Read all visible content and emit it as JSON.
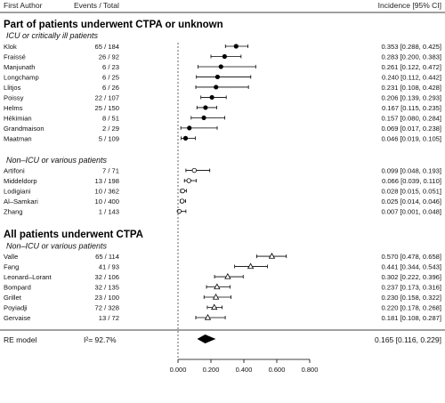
{
  "header": {
    "author": "First Author",
    "events": "Events / Total",
    "incidence": "Incidence [95% CI]"
  },
  "sections": [
    {
      "title": "Part of patients underwent CTPA or unknown",
      "groups": [
        {
          "title": "ICU or critically ill patients",
          "marker": "circle",
          "rows": [
            {
              "author": "Klok",
              "events": "65 / 184",
              "est": 0.353,
              "lo": 0.288,
              "hi": 0.425,
              "ci": "0.353 [0.288, 0.425]"
            },
            {
              "author": "Fraissé",
              "events": "26 / 92",
              "est": 0.283,
              "lo": 0.2,
              "hi": 0.383,
              "ci": "0.283 [0.200, 0.383]"
            },
            {
              "author": "Manjunath",
              "events": "6 / 23",
              "est": 0.261,
              "lo": 0.122,
              "hi": 0.472,
              "ci": "0.261 [0.122, 0.472]"
            },
            {
              "author": "Longchamp",
              "events": "6 / 25",
              "est": 0.24,
              "lo": 0.112,
              "hi": 0.442,
              "ci": "0.240 [0.112, 0.442]"
            },
            {
              "author": "Llitjos",
              "events": "6 / 26",
              "est": 0.231,
              "lo": 0.108,
              "hi": 0.428,
              "ci": "0.231 [0.108, 0.428]"
            },
            {
              "author": "Poissy",
              "events": "22 / 107",
              "est": 0.206,
              "lo": 0.139,
              "hi": 0.293,
              "ci": "0.206 [0.139, 0.293]"
            },
            {
              "author": "Helms",
              "events": "25 / 150",
              "est": 0.167,
              "lo": 0.115,
              "hi": 0.235,
              "ci": "0.167 [0.115, 0.235]"
            },
            {
              "author": "Hékimian",
              "events": "8 / 51",
              "est": 0.157,
              "lo": 0.08,
              "hi": 0.284,
              "ci": "0.157 [0.080, 0.284]"
            },
            {
              "author": "Grandmaison",
              "events": "2 / 29",
              "est": 0.069,
              "lo": 0.017,
              "hi": 0.238,
              "ci": "0.069 [0.017, 0.238]"
            },
            {
              "author": "Maatman",
              "events": "5 / 109",
              "est": 0.046,
              "lo": 0.019,
              "hi": 0.105,
              "ci": "0.046 [0.019, 0.105]"
            }
          ]
        },
        {
          "title": "Non–ICU or various patients",
          "marker": "open-circle",
          "rows": [
            {
              "author": "Artifoni",
              "events": "7 / 71",
              "est": 0.099,
              "lo": 0.048,
              "hi": 0.193,
              "ci": "0.099 [0.048, 0.193]"
            },
            {
              "author": "Middeldorp",
              "events": "13 / 198",
              "est": 0.066,
              "lo": 0.039,
              "hi": 0.11,
              "ci": "0.066 [0.039, 0.110]"
            },
            {
              "author": "Lodigiani",
              "events": "10 / 362",
              "est": 0.028,
              "lo": 0.015,
              "hi": 0.051,
              "ci": "0.028 [0.015, 0.051]"
            },
            {
              "author": "Al–Samkari",
              "events": "10 / 400",
              "est": 0.025,
              "lo": 0.014,
              "hi": 0.046,
              "ci": "0.025 [0.014, 0.046]"
            },
            {
              "author": "Zhang",
              "events": "1 / 143",
              "est": 0.007,
              "lo": 0.001,
              "hi": 0.048,
              "ci": "0.007 [0.001, 0.048]"
            }
          ]
        }
      ]
    },
    {
      "title": "All patients underwent CTPA",
      "groups": [
        {
          "title": "Non–ICU or various patients",
          "marker": "open-triangle",
          "rows": [
            {
              "author": "Valle",
              "events": "65 / 114",
              "est": 0.57,
              "lo": 0.478,
              "hi": 0.658,
              "ci": "0.570 [0.478, 0.658]"
            },
            {
              "author": "Fang",
              "events": "41 / 93",
              "est": 0.441,
              "lo": 0.344,
              "hi": 0.543,
              "ci": "0.441 [0.344, 0.543]"
            },
            {
              "author": "Leonard–Lorant",
              "events": "32 / 106",
              "est": 0.302,
              "lo": 0.222,
              "hi": 0.396,
              "ci": "0.302 [0.222, 0.396]"
            },
            {
              "author": "Bompard",
              "events": "32 / 135",
              "est": 0.237,
              "lo": 0.173,
              "hi": 0.316,
              "ci": "0.237 [0.173, 0.316]"
            },
            {
              "author": "Grillet",
              "events": "23 / 100",
              "est": 0.23,
              "lo": 0.158,
              "hi": 0.322,
              "ci": "0.230 [0.158, 0.322]"
            },
            {
              "author": "Poyiadji",
              "events": "72 / 328",
              "est": 0.22,
              "lo": 0.178,
              "hi": 0.268,
              "ci": "0.220 [0.178, 0.268]"
            },
            {
              "author": "Gervaise",
              "events": "13 / 72",
              "est": 0.181,
              "lo": 0.108,
              "hi": 0.287,
              "ci": "0.181 [0.108, 0.287]"
            }
          ]
        }
      ]
    }
  ],
  "re_model": {
    "label": "RE model",
    "i2": "I²= 92.7%",
    "est": 0.165,
    "lo": 0.116,
    "hi": 0.229,
    "ci": "0.165 [0.116, 0.229]"
  },
  "chart_data": {
    "type": "forest",
    "xlim": [
      0,
      0.8
    ],
    "xticks": [
      "0.000",
      "0.200",
      "0.400",
      "0.600",
      "0.800"
    ],
    "tick_values": [
      0,
      0.2,
      0.4,
      0.6,
      0.8
    ],
    "reference_line": 0,
    "colors": {
      "marker": "#000000",
      "open_marker_fill": "#ffffff",
      "ci_line": "#000000"
    }
  }
}
